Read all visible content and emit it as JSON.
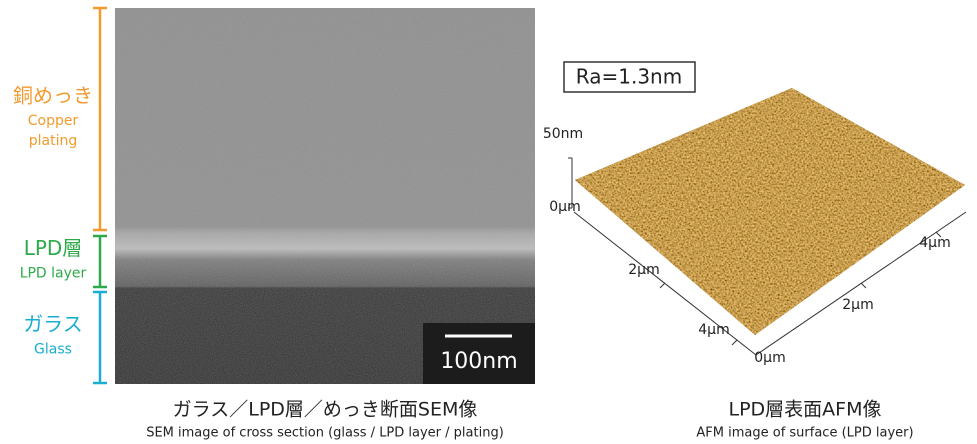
{
  "sem": {
    "layers": [
      {
        "ja": "銅めっき",
        "en": [
          "Copper",
          "plating"
        ],
        "color": "#f29a2e"
      },
      {
        "ja": "LPD層",
        "en": [
          "LPD layer"
        ],
        "color": "#2eaa4a"
      },
      {
        "ja": "ガラス",
        "en": [
          "Glass"
        ],
        "color": "#1aaed0"
      }
    ],
    "scale_bar": "100nm",
    "caption_ja": "ガラス／LPD層／めっき断面SEM像",
    "caption_en": "SEM image of cross section (glass / LPD layer / plating)"
  },
  "afm": {
    "ra": "Ra=1.3nm",
    "z_labels": [
      "50nm",
      "0μm"
    ],
    "left_axis_labels": [
      "2μm",
      "4μm"
    ],
    "right_axis_labels": [
      "0μm",
      "2μm",
      "4μm"
    ],
    "caption_ja": "LPD層表面AFM像",
    "caption_en": "AFM image of surface (LPD layer)"
  }
}
